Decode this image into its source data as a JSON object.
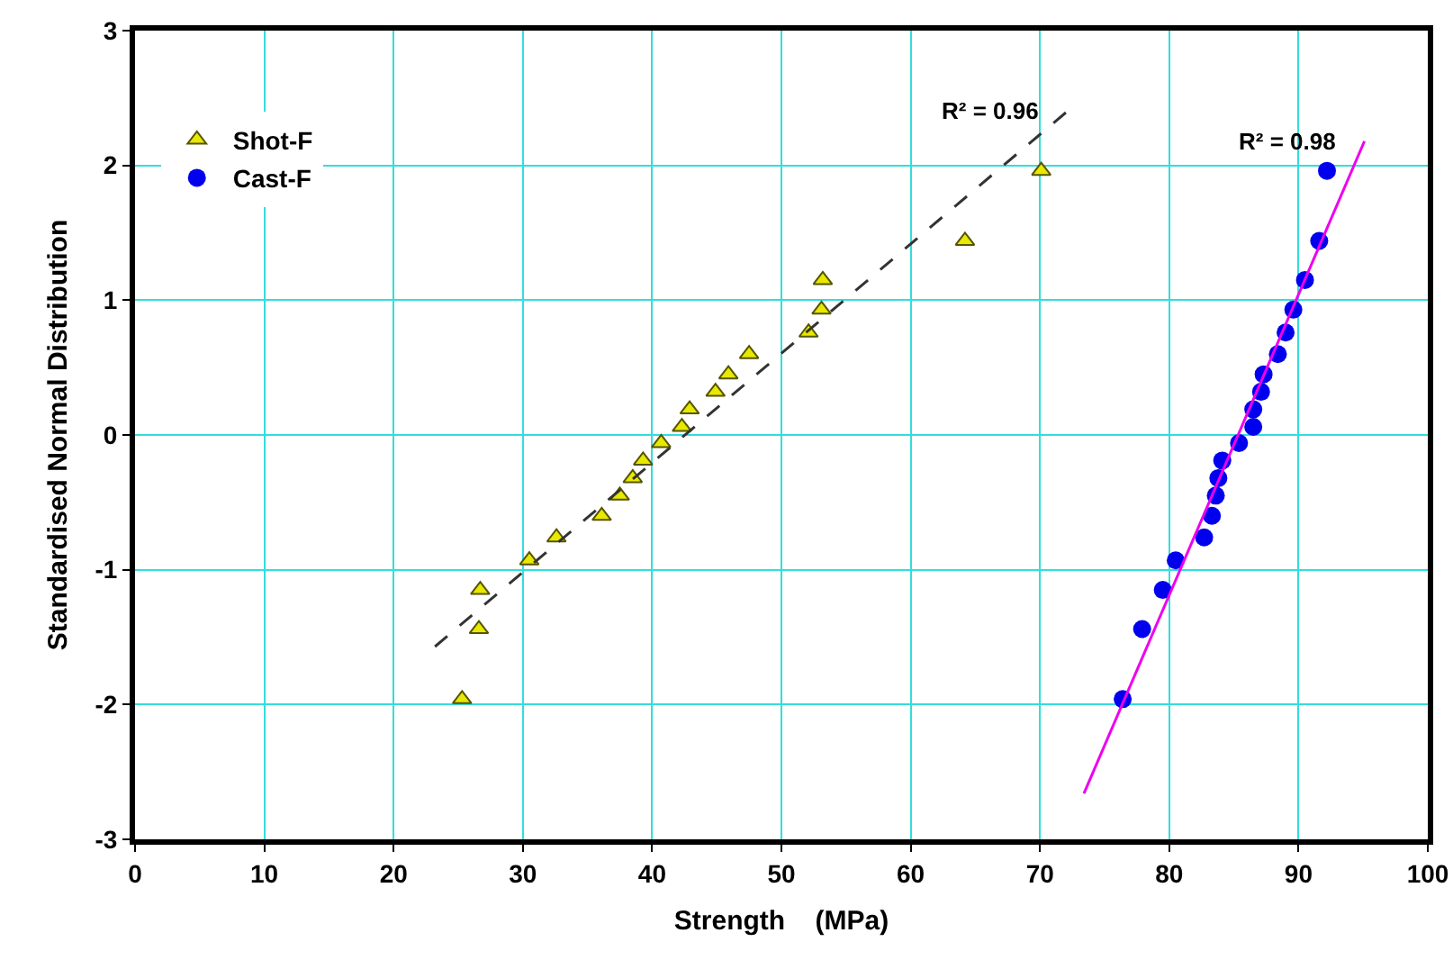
{
  "chart_data": {
    "type": "scatter",
    "xlabel": "Strength    (MPa)",
    "ylabel": "Standardised Normal Distribution",
    "xlim": [
      0,
      100
    ],
    "xticks": [
      0,
      10,
      20,
      30,
      40,
      50,
      60,
      70,
      80,
      90,
      100
    ],
    "ylim": [
      -3,
      3
    ],
    "yticks": [
      -3,
      -2,
      -1,
      0,
      1,
      2,
      3
    ],
    "grid": true,
    "legend": "top left",
    "series": [
      {
        "name": "Shot-F",
        "color": "#e8e800",
        "marker": "triangle",
        "x": [
          25.3,
          26.6,
          26.7,
          30.5,
          32.6,
          36.1,
          37.5,
          38.5,
          39.3,
          40.7,
          42.3,
          42.9,
          44.9,
          45.9,
          47.5,
          52.1,
          53.1,
          53.2,
          64.2,
          70.1
        ],
        "values": [
          -1.96,
          -1.44,
          -1.15,
          -0.93,
          -0.76,
          -0.6,
          -0.45,
          -0.32,
          -0.19,
          -0.06,
          0.06,
          0.19,
          0.32,
          0.45,
          0.6,
          0.76,
          0.93,
          1.15,
          1.44,
          1.96
        ]
      },
      {
        "name": "Cast-F",
        "color": "#0000ee",
        "marker": "circle",
        "x": [
          76.4,
          77.9,
          79.5,
          80.5,
          82.7,
          83.3,
          83.6,
          83.8,
          84.1,
          85.4,
          86.5,
          86.5,
          87.1,
          87.3,
          88.4,
          89.0,
          89.6,
          90.5,
          91.6,
          92.2
        ],
        "values": [
          -1.96,
          -1.44,
          -1.15,
          -0.93,
          -0.76,
          -0.6,
          -0.45,
          -0.32,
          -0.19,
          -0.06,
          0.06,
          0.19,
          0.32,
          0.45,
          0.6,
          0.76,
          0.93,
          1.15,
          1.44,
          1.96
        ]
      },
      {
        "type": "line",
        "color": "#333333",
        "line_style": "dashed",
        "x": [
          23.2,
          72.1
        ],
        "values": [
          -1.57,
          2.4
        ]
      },
      {
        "type": "line",
        "color": "#ee00ee",
        "line_style": "solid",
        "x": [
          73.4,
          95.1
        ],
        "values": [
          -2.66,
          2.18
        ]
      }
    ],
    "annotations": [
      "R² = 0.96",
      "R² = 0.98"
    ]
  }
}
